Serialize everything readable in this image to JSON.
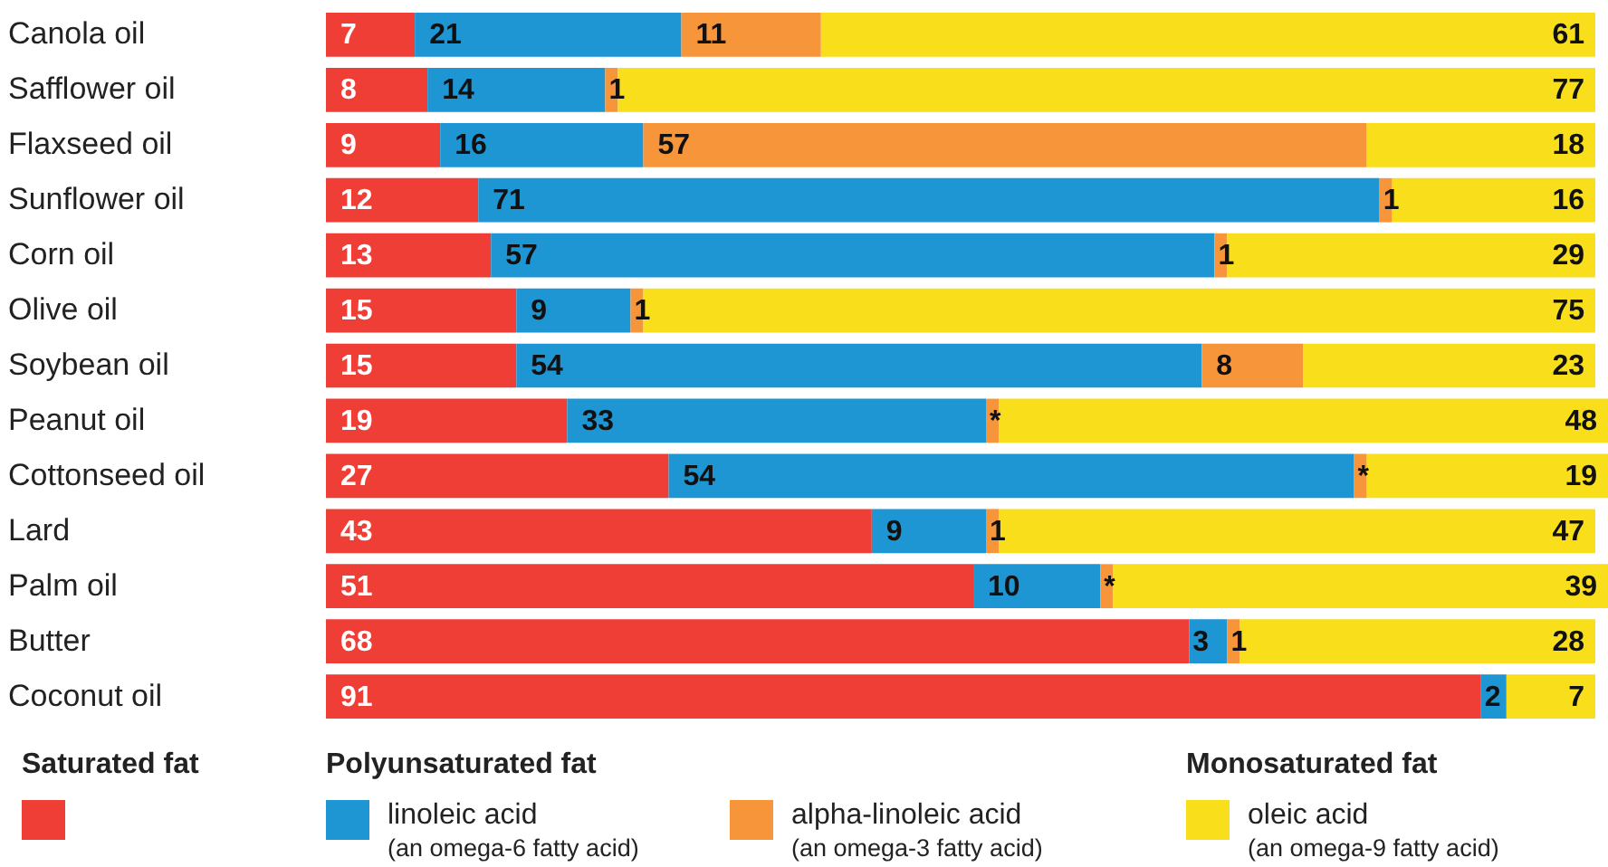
{
  "chart_data": {
    "type": "bar",
    "orientation": "horizontal",
    "stacked": true,
    "data_labels": true,
    "legend": "bottom",
    "categories": [
      "Canola oil",
      "Safflower oil",
      "Flaxseed oil",
      "Sunflower oil",
      "Corn oil",
      "Olive oil",
      "Soybean oil",
      "Peanut oil",
      "Cottonseed oil",
      "Lard",
      "Palm oil",
      "Butter",
      "Coconut oil"
    ],
    "series": [
      {
        "color": "#ef3e36",
        "values": [
          7,
          8,
          9,
          12,
          13,
          15,
          15,
          19,
          27,
          43,
          51,
          68,
          91
        ]
      },
      {
        "name": "linoleic acid",
        "color": "#1e96d4",
        "values": [
          21,
          14,
          16,
          71,
          57,
          9,
          54,
          33,
          54,
          9,
          10,
          3,
          2
        ]
      },
      {
        "name": "alpha-linoleic acid",
        "color": "#f7953a",
        "values": [
          11,
          1,
          57,
          1,
          1,
          1,
          8,
          1,
          1,
          1,
          1,
          1,
          0
        ],
        "value_labels": [
          "11",
          "1",
          "57",
          "1",
          "1",
          "1",
          "8",
          "*",
          "*",
          "1",
          "*",
          "1",
          null
        ]
      },
      {
        "name": "oleic acid",
        "color": "#f9de1c",
        "values": [
          61,
          77,
          18,
          16,
          29,
          75,
          23,
          48,
          19,
          47,
          39,
          28,
          7
        ]
      }
    ],
    "annotations": [
      "Saturated fat",
      "Polyunsaturated fat",
      "Monosaturated fat",
      "(an omega-6 fatty acid)",
      "(an omega-3 fatty acid)",
      "(an omega-9 fatty acid)"
    ]
  }
}
